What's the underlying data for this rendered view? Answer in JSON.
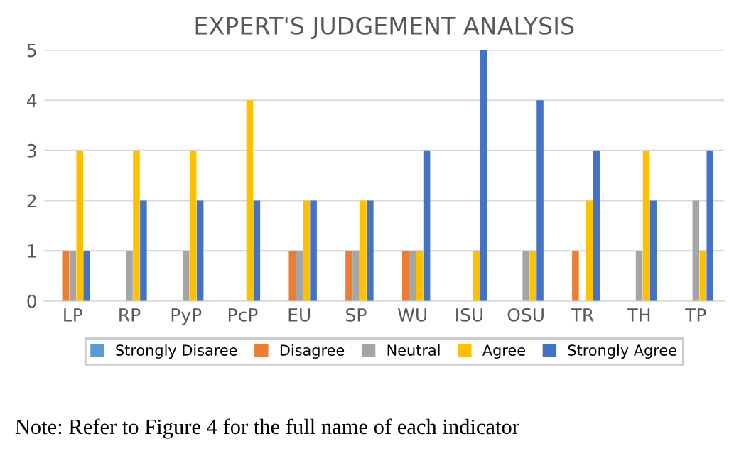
{
  "chart_data": {
    "type": "bar",
    "title": "EXPERT'S JUDGEMENT ANALYSIS",
    "categories": [
      "LP",
      "RP",
      "PyP",
      "PcP",
      "EU",
      "SP",
      "WU",
      "ISU",
      "OSU",
      "TR",
      "TH",
      "TP"
    ],
    "series": [
      {
        "name": "Strongly Disaree",
        "color": "#5b9bd5",
        "values": [
          0,
          0,
          0,
          0,
          0,
          0,
          0,
          0,
          0,
          0,
          0,
          0
        ]
      },
      {
        "name": "Disagree",
        "color": "#ed7d31",
        "values": [
          1,
          0,
          0,
          0,
          1,
          1,
          1,
          0,
          0,
          1,
          0,
          0
        ]
      },
      {
        "name": "Neutral",
        "color": "#a5a5a5",
        "values": [
          1,
          1,
          1,
          0,
          1,
          1,
          1,
          0,
          1,
          0,
          1,
          2
        ]
      },
      {
        "name": "Agree",
        "color": "#ffc000",
        "values": [
          3,
          3,
          3,
          4,
          2,
          2,
          1,
          1,
          1,
          2,
          3,
          1
        ]
      },
      {
        "name": "Strongly Agree",
        "color": "#4472c4",
        "values": [
          1,
          2,
          2,
          2,
          2,
          2,
          3,
          5,
          4,
          3,
          2,
          3
        ]
      }
    ],
    "ylim": [
      0,
      5
    ],
    "yticks": [
      0,
      1,
      2,
      3,
      4,
      5
    ],
    "grid": "y",
    "legend": "bottom",
    "annotations": [
      "Note: Refer to Figure 4 for the full name of each indicator"
    ]
  }
}
